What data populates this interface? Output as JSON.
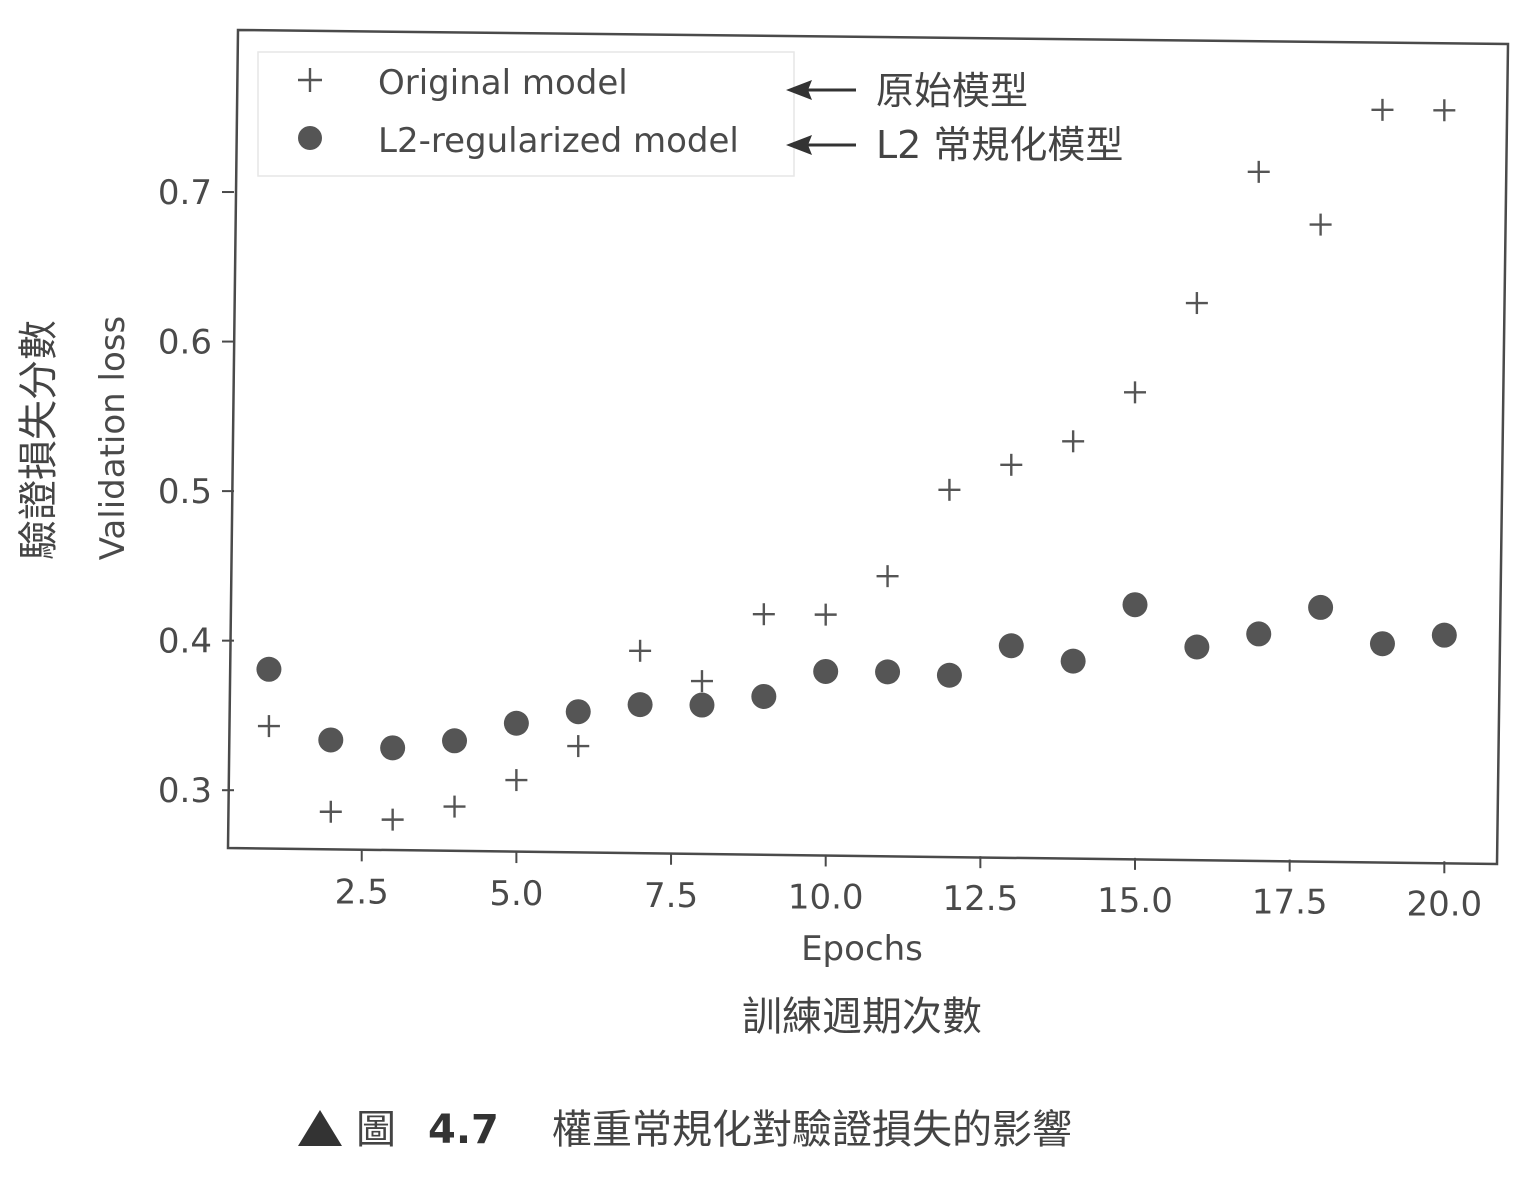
{
  "chart_data": {
    "type": "scatter",
    "title": "",
    "xlabel": "Epochs",
    "ylabel": "Validation loss",
    "xlabel_zh": "訓練週期次數",
    "ylabel_zh": "驗證損失分數",
    "xlim": [
      0.5,
      20.9
    ],
    "ylim": [
      0.256,
      0.803
    ],
    "xticks": [
      2.5,
      5.0,
      7.5,
      10.0,
      12.5,
      15.0,
      17.5,
      20.0
    ],
    "xtick_labels": [
      "2.5",
      "5.0",
      "7.5",
      "10.0",
      "12.5",
      "15.0",
      "17.5",
      "20.0"
    ],
    "yticks": [
      0.3,
      0.4,
      0.5,
      0.6,
      0.7
    ],
    "ytick_labels": [
      "0.3",
      "0.4",
      "0.5",
      "0.6",
      "0.7"
    ],
    "grid": false,
    "legend_position": "top-left",
    "x": [
      1,
      2,
      3,
      4,
      5,
      6,
      7,
      8,
      9,
      10,
      11,
      12,
      13,
      14,
      15,
      16,
      17,
      18,
      19,
      20
    ],
    "series": [
      {
        "name": "Original model",
        "marker": "plus",
        "color": "#555555",
        "values": [
          0.343,
          0.286,
          0.281,
          0.29,
          0.308,
          0.331,
          0.395,
          0.375,
          0.42,
          0.42,
          0.446,
          0.504,
          0.521,
          0.537,
          0.57,
          0.63,
          0.718,
          0.683,
          0.76,
          0.76
        ]
      },
      {
        "name": "L2-regularized model",
        "marker": "circle",
        "color": "#555555",
        "values": [
          0.381,
          0.334,
          0.329,
          0.334,
          0.346,
          0.354,
          0.359,
          0.359,
          0.365,
          0.382,
          0.382,
          0.38,
          0.4,
          0.39,
          0.428,
          0.4,
          0.409,
          0.427,
          0.403,
          0.409
        ]
      }
    ],
    "annotations": [
      {
        "text": "原始模型",
        "target": "Original model"
      },
      {
        "text": "L2 常規化模型",
        "target": "L2-regularized model"
      }
    ]
  },
  "caption": {
    "figure_label": "圖",
    "figure_number": "4.7",
    "text": "權重常規化對驗證損失的影響"
  }
}
